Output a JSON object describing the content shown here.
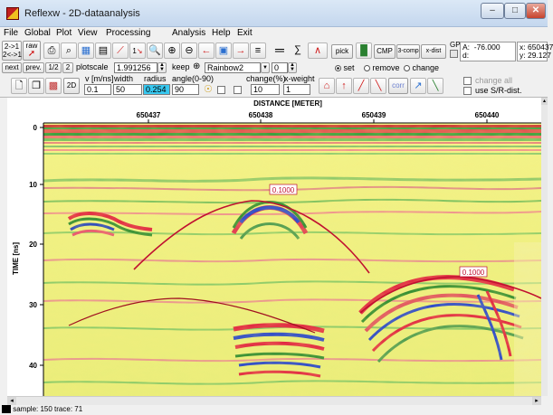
{
  "window": {
    "title": "Reflexw - 2D-dataanalysis",
    "minimize": "–",
    "maximize": "□",
    "close": "✕"
  },
  "menu": [
    "File",
    "Global",
    "Plot",
    "View",
    "Processing",
    "Analysis",
    "Help",
    "Exit"
  ],
  "toolbar1": {
    "trace_nav": "2->1\n2<->1",
    "raw_label": "raw",
    "icons": [
      "printer-icon",
      "magnify-page-icon",
      "colorpage-icon",
      "window-icon",
      "slash-icon",
      "scale-icon",
      "zoom-icon",
      "zoom-plus-icon",
      "zoom-in-out-icon",
      "left-arrow-icon",
      "frame-icon",
      "right-arrow-icon",
      "pattern-icon",
      "layer-icon",
      "sum-icon"
    ],
    "pick_label": "pick",
    "cmp_label": "CMP",
    "threecomp_label": "3-comp",
    "xdist_label": "x-dist",
    "gps_label": "GPS",
    "infobox_a": "A:  -76.000\nd:",
    "infobox_xy": "x: 650437\ny: 29.127"
  },
  "toolbar2": {
    "next": "next",
    "prev": "prev.",
    "half": "1/2",
    "two": "2",
    "plotscale_label": "plotscale",
    "plotscale_value": "1.991256",
    "keep_label": "keep",
    "colorscale": "Rainbow2",
    "spin_value": "0",
    "radio_set": "set",
    "radio_remove": "remove",
    "radio_change": "change"
  },
  "toolbar3": {
    "btn_2d": "2D",
    "v_label": "v [m/ns]",
    "v_value": "0.1",
    "width_label": "width",
    "width_value": "50",
    "radius_label": "radius",
    "radius_value": "0.254",
    "angle_label": "angle(0-90)",
    "angle_value": "90",
    "change_label": "change(%)",
    "change_value": "10",
    "xweight_label": "x-weight",
    "xweight_value": "1",
    "corr_label": "corr",
    "change_all": "change all",
    "use_sr": "use S/R-dist."
  },
  "plot": {
    "top_axis_title": "DISTANCE [METER]",
    "top_ticks": [
      "650437",
      "650438",
      "650439",
      "650440"
    ],
    "left_axis_title": "TIME [ns]",
    "left_ticks": [
      "0",
      "10",
      "20",
      "30",
      "40"
    ],
    "hyperbola_labels": [
      "0.1000",
      "0.1000"
    ]
  },
  "status": {
    "text": "sample: 150  trace: 71"
  }
}
